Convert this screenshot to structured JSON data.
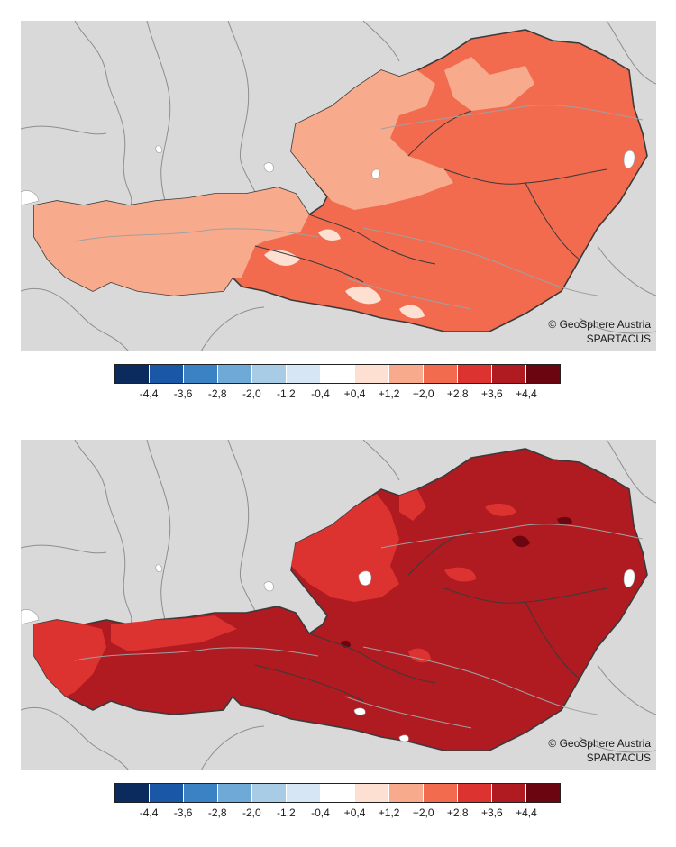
{
  "attribution": {
    "copyright": "© GeoSphere Austria",
    "source": "SPARTACUS"
  },
  "colors": {
    "background_land": "#d9d9d9",
    "border_country": "#3a3a3a",
    "border_internal": "#9a9a9a",
    "lake": "#ffffff"
  },
  "legend": {
    "swatch_colors": [
      "#0b2a5e",
      "#1a57a6",
      "#3b82c4",
      "#6fa9d7",
      "#a8cbe6",
      "#d6e6f4",
      "#ffffff",
      "#fde0d2",
      "#f7ab8c",
      "#f26b4f",
      "#dc3330",
      "#b01a21",
      "#6b0611"
    ],
    "tick_labels": [
      "-4,4",
      "-3,6",
      "-2,8",
      "-2,0",
      "-1,2",
      "-0,4",
      "+0,4",
      "+1,2",
      "+2,0",
      "+2,8",
      "+3,6",
      "+4,4"
    ]
  },
  "maps": [
    {
      "dominant_class": "+1,2 to +2,0 (west) / +2,0 to +2,8 (east)",
      "fill_colors": {
        "base": "#f26b4f",
        "west": "#f7ab8c",
        "pale": "#fde0d2"
      }
    },
    {
      "dominant_class": "+3,6 to +4,4",
      "fill_colors": {
        "base": "#b01a21",
        "west": "#dc3330",
        "dark": "#6b0611"
      }
    }
  ]
}
